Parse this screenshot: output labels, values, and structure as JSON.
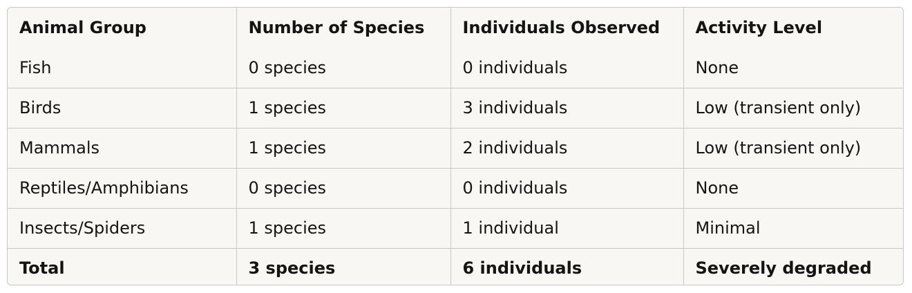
{
  "table": {
    "headers": [
      "Animal Group",
      "Number of Species",
      "Individuals Observed",
      "Activity Level"
    ],
    "rows": [
      [
        "Fish",
        "0 species",
        "0 individuals",
        "None"
      ],
      [
        "Birds",
        "1 species",
        "3 individuals",
        "Low (transient only)"
      ],
      [
        "Mammals",
        "1 species",
        "2 individuals",
        "Low (transient only)"
      ],
      [
        "Reptiles/Amphibians",
        "0 species",
        "0 individuals",
        "None"
      ],
      [
        "Insects/Spiders",
        "1 species",
        "1 individual",
        "Minimal"
      ],
      [
        "Total",
        "3 species",
        "6 individuals",
        "Severely degraded"
      ]
    ]
  }
}
